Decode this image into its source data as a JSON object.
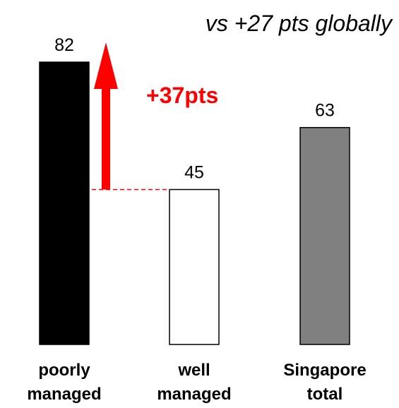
{
  "chart_data": {
    "type": "bar",
    "categories": [
      [
        "poorly",
        "managed"
      ],
      [
        "well",
        "managed"
      ],
      [
        "Singapore",
        "total"
      ]
    ],
    "values": [
      82,
      45,
      63
    ],
    "value_labels": [
      "82",
      "45",
      "63"
    ],
    "bar_colors": [
      "#000000",
      "#ffffff",
      "#808080"
    ],
    "bar_outline": "#000000",
    "ylim": [
      0,
      100
    ],
    "axes_visible": false,
    "grid": false,
    "annotations": {
      "difference_label": "+37pts",
      "difference_color": "#ff0000",
      "comparison_note": "vs +27 pts globally"
    }
  }
}
